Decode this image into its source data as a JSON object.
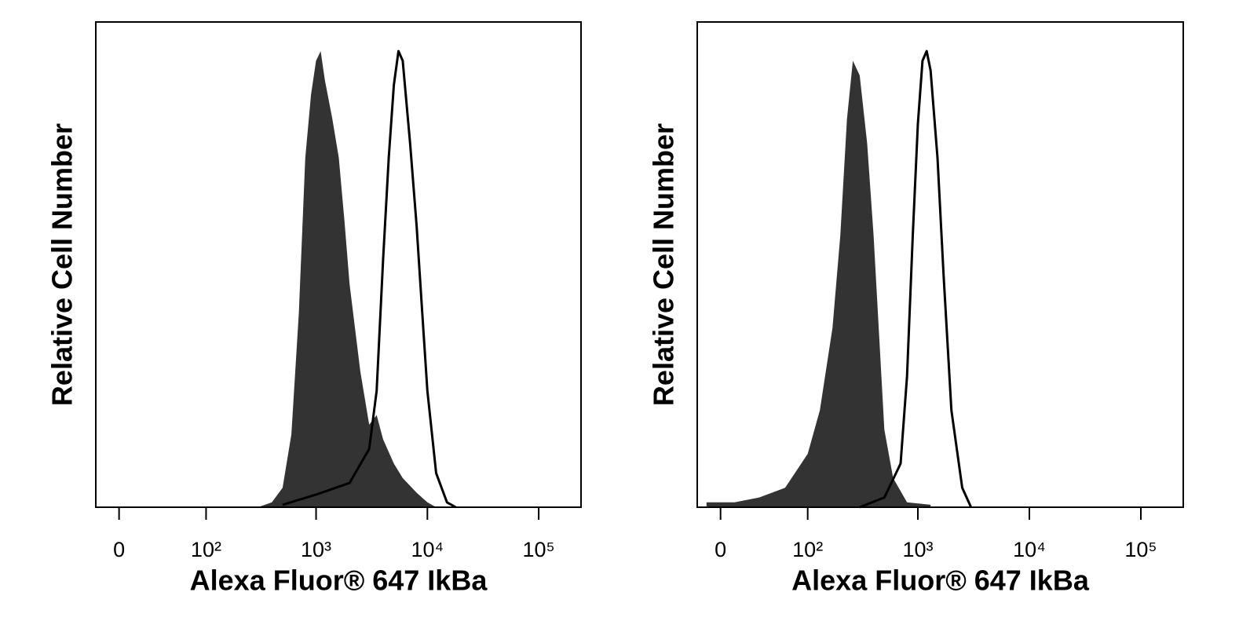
{
  "chart_data": [
    {
      "type": "histogram-overlay",
      "x_label": "Alexa Fluor® 647 IkBa",
      "y_label": "Relative Cell Number",
      "xscale": "biexponential",
      "xlim": [
        -17,
        240000
      ],
      "ylim": [
        0,
        100
      ],
      "xticks": [
        0,
        {
          "value": 100,
          "label": "10²"
        },
        {
          "value": 1000,
          "label": "10³"
        },
        {
          "value": 10000,
          "label": "10⁴"
        },
        {
          "value": 100000,
          "label": "10⁵"
        }
      ],
      "series": [
        {
          "color": "#333333",
          "filled": true,
          "x": [
            300,
            400,
            500,
            600,
            700,
            800,
            900,
            1000,
            1100,
            1200,
            1400,
            1600,
            1800,
            2000,
            2500,
            3000,
            3500,
            4000,
            5000,
            6000,
            8000,
            10000,
            12000
          ],
          "values": [
            0,
            1,
            4,
            15,
            40,
            72,
            85,
            92,
            94,
            88,
            80,
            72,
            59,
            46,
            28,
            17,
            19,
            14,
            9,
            6,
            3,
            1,
            0
          ]
        },
        {
          "color": "#000000",
          "filled": false,
          "x": [
            500,
            1000,
            2000,
            3000,
            3500,
            4000,
            4500,
            5000,
            5500,
            6000,
            7000,
            8000,
            9000,
            10000,
            12000,
            15000,
            18000
          ],
          "values": [
            0.5,
            2.6,
            5,
            12,
            24,
            51,
            72,
            87,
            94,
            92,
            75,
            58,
            40,
            24,
            7,
            1,
            0
          ]
        }
      ]
    },
    {
      "type": "histogram-overlay",
      "x_label": "Alexa Fluor® 647 IkBa",
      "y_label": "Relative Cell Number",
      "xscale": "biexponential",
      "xlim": [
        -17,
        240000
      ],
      "ylim": [
        0,
        100
      ],
      "xticks": [
        0,
        {
          "value": 100,
          "label": "10²"
        },
        {
          "value": 1000,
          "label": "10³"
        },
        {
          "value": 10000,
          "label": "10⁴"
        },
        {
          "value": 100000,
          "label": "10⁵"
        }
      ],
      "series": [
        {
          "color": "#333333",
          "filled": true,
          "x": [
            -10,
            10,
            30,
            60,
            100,
            130,
            170,
            200,
            230,
            260,
            300,
            350,
            400,
            450,
            500,
            600,
            800,
            1300
          ],
          "values": [
            1,
            1,
            2,
            4,
            11,
            20,
            37,
            56,
            80,
            92,
            89,
            75,
            56,
            35,
            16,
            6,
            1,
            0.5
          ]
        },
        {
          "color": "#000000",
          "filled": false,
          "x": [
            300,
            500,
            700,
            800,
            900,
            1000,
            1100,
            1200,
            1300,
            1500,
            1700,
            2000,
            2500,
            3000
          ],
          "values": [
            0,
            2,
            9,
            27,
            56,
            79,
            92,
            94,
            90,
            72,
            48,
            20,
            4,
            0
          ]
        }
      ]
    }
  ]
}
